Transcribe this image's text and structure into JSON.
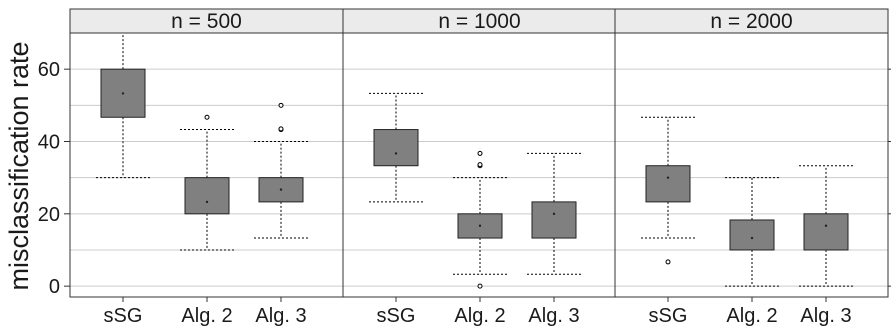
{
  "chart_data": {
    "type": "boxplot",
    "ylabel": "misclassification rate",
    "ylim": [
      -3,
      70
    ],
    "yticks": [
      0,
      20,
      40,
      60
    ],
    "categories": [
      "sSG",
      "Alg. 2",
      "Alg. 3"
    ],
    "grid": true,
    "colors": {
      "box_fill": "#808080",
      "strip_fill": "#ebebeb",
      "grid": "#cccccc"
    },
    "panels": [
      {
        "label": "n = 500",
        "boxes": [
          {
            "category": "sSG",
            "whisker_low": 30,
            "q1": 46.7,
            "median": 53.3,
            "q3": 60,
            "whisker_high": 70,
            "outliers": []
          },
          {
            "category": "Alg. 2",
            "whisker_low": 10,
            "q1": 20,
            "median": 23.3,
            "q3": 30,
            "whisker_high": 43.3,
            "outliers": [
              46.7
            ]
          },
          {
            "category": "Alg. 3",
            "whisker_low": 13.3,
            "q1": 23.3,
            "median": 26.7,
            "q3": 30,
            "whisker_high": 40,
            "outliers": [
              43.3,
              43.5,
              50
            ]
          }
        ]
      },
      {
        "label": "n = 1000",
        "boxes": [
          {
            "category": "sSG",
            "whisker_low": 23.3,
            "q1": 33.3,
            "median": 36.7,
            "q3": 43.3,
            "whisker_high": 53.3,
            "outliers": []
          },
          {
            "category": "Alg. 2",
            "whisker_low": 3.3,
            "q1": 13.3,
            "median": 16.7,
            "q3": 20,
            "whisker_high": 30,
            "outliers": [
              0,
              33.3,
              33.6,
              36.7
            ]
          },
          {
            "category": "Alg. 3",
            "whisker_low": 3.3,
            "q1": 13.3,
            "median": 20,
            "q3": 23.3,
            "whisker_high": 36.7,
            "outliers": []
          }
        ]
      },
      {
        "label": "n = 2000",
        "boxes": [
          {
            "category": "sSG",
            "whisker_low": 13.3,
            "q1": 23.3,
            "median": 30,
            "q3": 33.3,
            "whisker_high": 46.7,
            "outliers": [
              6.7
            ]
          },
          {
            "category": "Alg. 2",
            "whisker_low": 0,
            "q1": 10,
            "median": 13.3,
            "q3": 18.3,
            "whisker_high": 30,
            "outliers": []
          },
          {
            "category": "Alg. 3",
            "whisker_low": 0,
            "q1": 10,
            "median": 16.7,
            "q3": 20,
            "whisker_high": 33.3,
            "outliers": []
          }
        ]
      }
    ]
  }
}
